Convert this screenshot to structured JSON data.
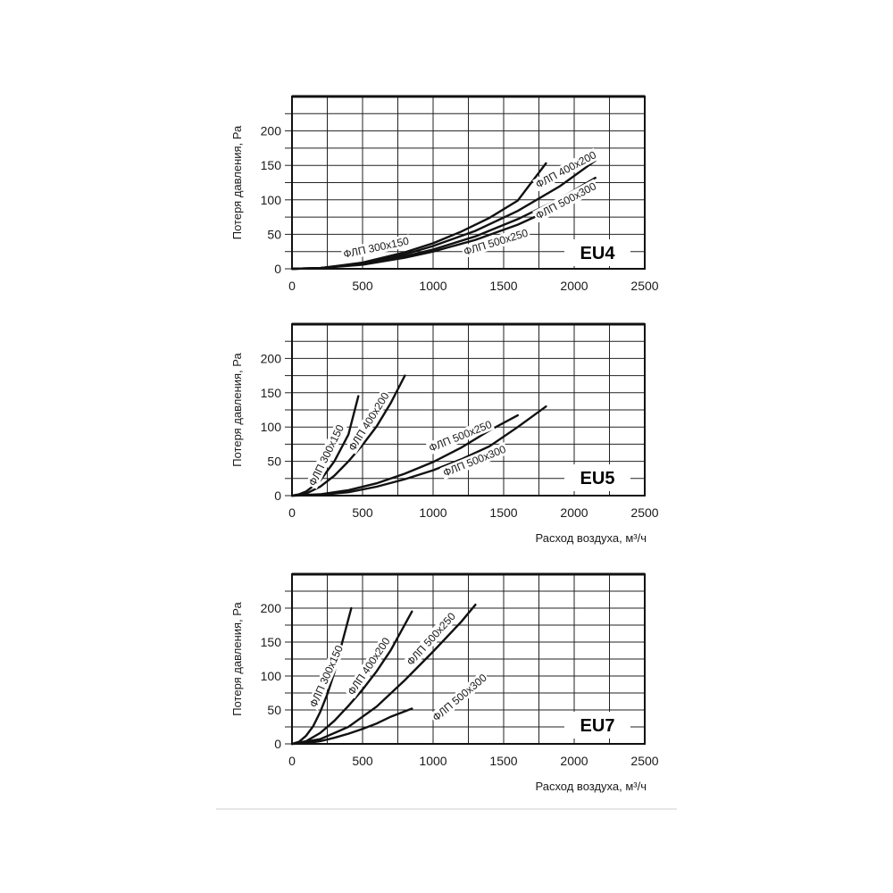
{
  "chart_data": [
    {
      "type": "line",
      "badge": "EU4",
      "ylabel": "Потеря давления, Ра",
      "xlabel": "",
      "xlim": [
        0,
        2500
      ],
      "ylim": [
        0,
        250
      ],
      "xticks": [
        "0",
        "500",
        "1000",
        "1500",
        "2000",
        "2500"
      ],
      "yticks": [
        "0",
        "50",
        "100",
        "150",
        "200"
      ],
      "grid": true,
      "series": [
        {
          "name": "ФЛП 300x150",
          "x": [
            0,
            200,
            500,
            800,
            1000,
            1200,
            1400,
            1600,
            1800
          ],
          "y": [
            0,
            1,
            9,
            24,
            37,
            54,
            74,
            99,
            153
          ]
        },
        {
          "name": "ФЛП 400x200",
          "x": [
            0,
            200,
            500,
            800,
            1000,
            1300,
            1600,
            1900,
            2150
          ],
          "y": [
            0,
            1,
            8,
            21,
            33,
            55,
            84,
            120,
            157
          ]
        },
        {
          "name": "ФЛП 500x300",
          "x": [
            0,
            200,
            500,
            800,
            1000,
            1300,
            1600,
            1900,
            2150
          ],
          "y": [
            0,
            1,
            7,
            18,
            28,
            47,
            72,
            102,
            132
          ]
        },
        {
          "name": "ФЛП 500x250",
          "x": [
            0,
            200,
            500,
            800,
            1000,
            1300,
            1600,
            1900,
            2150
          ],
          "y": [
            0,
            1,
            6,
            16,
            25,
            42,
            64,
            92,
            118
          ]
        }
      ]
    },
    {
      "type": "line",
      "badge": "EU5",
      "ylabel": "Потеря давления, Ра",
      "xlabel": "Расход воздуха, м³/ч",
      "xlim": [
        0,
        2500
      ],
      "ylim": [
        0,
        250
      ],
      "xticks": [
        "0",
        "500",
        "1000",
        "1500",
        "2000",
        "2500"
      ],
      "yticks": [
        "0",
        "50",
        "100",
        "150",
        "200"
      ],
      "grid": true,
      "series": [
        {
          "name": "ФЛП 300x150",
          "x": [
            0,
            50,
            100,
            200,
            300,
            400,
            470
          ],
          "y": [
            0,
            2,
            6,
            22,
            50,
            89,
            145
          ]
        },
        {
          "name": "ФЛП 400x200",
          "x": [
            0,
            100,
            200,
            300,
            400,
            500,
            600,
            700,
            800
          ],
          "y": [
            0,
            3,
            13,
            29,
            50,
            74,
            101,
            135,
            175
          ]
        },
        {
          "name": "ФЛП 500x250",
          "x": [
            0,
            200,
            400,
            600,
            800,
            1000,
            1200,
            1400,
            1600
          ],
          "y": [
            0,
            2,
            8,
            18,
            32,
            49,
            70,
            95,
            117
          ]
        },
        {
          "name": "ФЛП 500x300",
          "x": [
            0,
            200,
            400,
            600,
            800,
            1000,
            1200,
            1400,
            1600,
            1800
          ],
          "y": [
            0,
            1,
            5,
            13,
            24,
            37,
            53,
            72,
            100,
            130
          ]
        }
      ]
    },
    {
      "type": "line",
      "badge": "EU7",
      "ylabel": "Потеря давления, Ра",
      "xlabel": "Расход воздуха, м³/ч",
      "xlim": [
        0,
        2500
      ],
      "ylim": [
        0,
        250
      ],
      "xticks": [
        "0",
        "500",
        "1000",
        "1500",
        "2000",
        "2500"
      ],
      "yticks": [
        "0",
        "50",
        "100",
        "150",
        "200"
      ],
      "grid": true,
      "series": [
        {
          "name": "ФЛП 300x150",
          "x": [
            0,
            50,
            100,
            150,
            200,
            250,
            300,
            350,
            420
          ],
          "y": [
            0,
            3,
            12,
            26,
            47,
            73,
            105,
            145,
            200
          ]
        },
        {
          "name": "ФЛП 400x200",
          "x": [
            0,
            100,
            200,
            300,
            400,
            500,
            600,
            700,
            850
          ],
          "y": [
            0,
            4,
            16,
            34,
            56,
            80,
            107,
            138,
            195
          ]
        },
        {
          "name": "ФЛП 500x250",
          "x": [
            0,
            200,
            400,
            600,
            800,
            1000,
            1200,
            1300
          ],
          "y": [
            0,
            7,
            25,
            55,
            94,
            136,
            180,
            205
          ]
        },
        {
          "name": "ФЛП 500x300",
          "x": [
            0,
            100,
            200,
            300,
            400,
            500,
            600,
            700,
            850
          ],
          "y": [
            0,
            1,
            4,
            9,
            15,
            22,
            30,
            40,
            52
          ]
        }
      ]
    }
  ]
}
